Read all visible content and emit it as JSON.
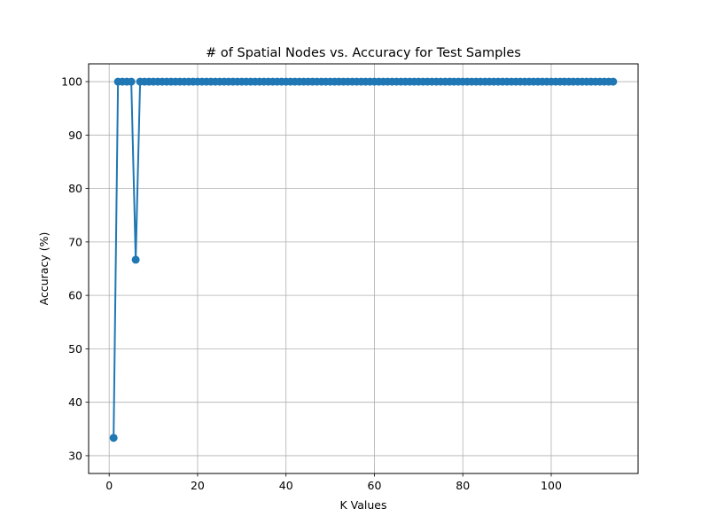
{
  "chart_data": {
    "type": "line",
    "title": "# of Spatial Nodes vs. Accuracy for Test Samples",
    "xlabel": "K Values",
    "ylabel": "Accuracy (%)",
    "xlim": [
      -4.65,
      119.65
    ],
    "ylim": [
      26.67,
      103.33
    ],
    "xticks": [
      0,
      20,
      40,
      60,
      80,
      100
    ],
    "yticks": [
      30,
      40,
      50,
      60,
      70,
      80,
      90,
      100
    ],
    "grid": true,
    "marker": "circle",
    "color": "#1f77b4",
    "series": [
      {
        "x_range": [
          1,
          114
        ],
        "values": [
          33.33,
          100,
          100,
          100,
          100,
          66.67,
          100,
          100,
          100,
          100,
          100,
          100,
          100,
          100,
          100,
          100,
          100,
          100,
          100,
          100,
          100,
          100,
          100,
          100,
          100,
          100,
          100,
          100,
          100,
          100,
          100,
          100,
          100,
          100,
          100,
          100,
          100,
          100,
          100,
          100,
          100,
          100,
          100,
          100,
          100,
          100,
          100,
          100,
          100,
          100,
          100,
          100,
          100,
          100,
          100,
          100,
          100,
          100,
          100,
          100,
          100,
          100,
          100,
          100,
          100,
          100,
          100,
          100,
          100,
          100,
          100,
          100,
          100,
          100,
          100,
          100,
          100,
          100,
          100,
          100,
          100,
          100,
          100,
          100,
          100,
          100,
          100,
          100,
          100,
          100,
          100,
          100,
          100,
          100,
          100,
          100,
          100,
          100,
          100,
          100,
          100,
          100,
          100,
          100,
          100,
          100,
          100,
          100,
          100,
          100,
          100,
          100,
          100,
          100
        ]
      }
    ]
  }
}
